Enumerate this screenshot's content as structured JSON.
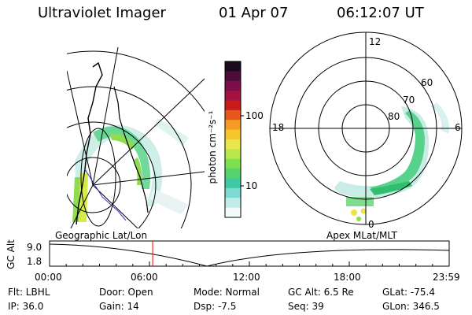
{
  "header": {
    "instrument": "Ultraviolet Imager",
    "date": "01 Apr 07",
    "time": "06:12:07 UT"
  },
  "colorbar": {
    "label": "photon cm⁻²s⁻¹",
    "tick_labels": [
      "100",
      "10"
    ],
    "colors": [
      "#1a0a1e",
      "#4b0c39",
      "#7c0f4b",
      "#a5123f",
      "#c81b1b",
      "#e6561d",
      "#f39c21",
      "#f5c62e",
      "#e8e64a",
      "#b8e84b",
      "#7ee04e",
      "#55d46b",
      "#3fc9a4",
      "#7edbd3",
      "#c2ece9",
      "#f4fbfb"
    ]
  },
  "polar": {
    "labels": [
      "12",
      "18",
      "6",
      "0",
      "60",
      "70",
      "80"
    ]
  },
  "timeline": {
    "left_title": "Geographic Lat/Lon",
    "right_title": "Apex MLat/MLT",
    "ylabel": "GC Alt",
    "ymax": "9.0",
    "ymin": "1.8",
    "xticks": [
      "00:00",
      "06:00",
      "12:00",
      "18:00",
      "23:59"
    ],
    "marker_time_fraction": 0.258
  },
  "info": {
    "flt": "Flt: LBHL",
    "ip": "IP: 36.0",
    "door": "Door: Open",
    "gain": "Gain: 14",
    "mode": "Mode: Normal",
    "dsp": "Dsp:   -7.5",
    "gcalt": "GC Alt: 6.5 Re",
    "seq": "Seq: 39",
    "glat": "GLat: -75.4",
    "glon": "GLon: 346.5"
  }
}
